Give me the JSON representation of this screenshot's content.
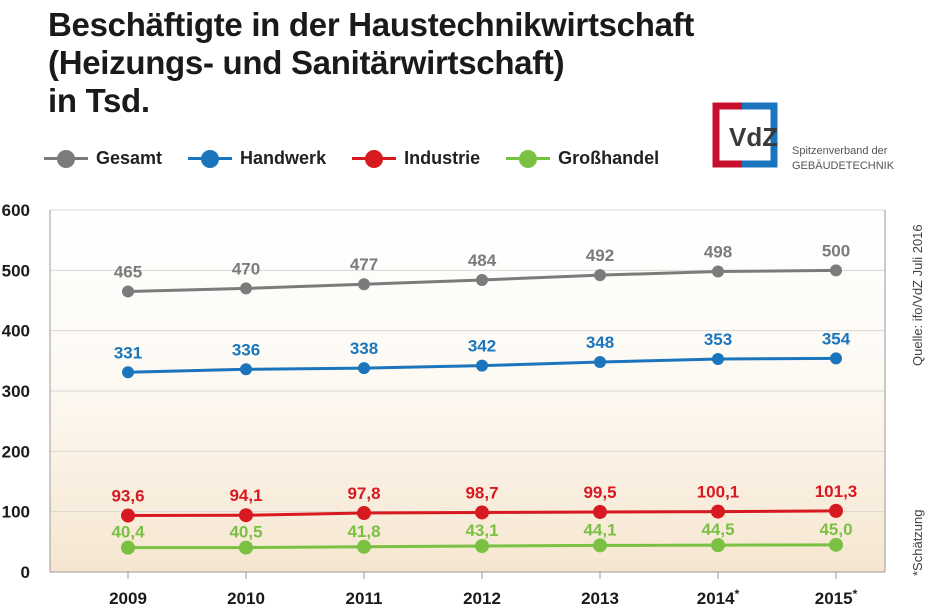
{
  "title_lines": [
    "Beschäftigte in der Haustechnikwirtschaft",
    "(Heizungs- und Sanitärwirtschaft)",
    "in Tsd."
  ],
  "legend": [
    {
      "label": "Gesamt",
      "color": "#7b7b7b"
    },
    {
      "label": "Handwerk",
      "color": "#1b75bc"
    },
    {
      "label": "Industrie",
      "color": "#d71920"
    },
    {
      "label": "Großhandel",
      "color": "#7ac143"
    }
  ],
  "logo": {
    "text": "VdZ",
    "org_line1": "Spitzenverband der",
    "org_line2": "GEBÄUDETECHNIK",
    "colors": {
      "red": "#c8102e",
      "blue": "#1b75bc"
    }
  },
  "source": "Quelle: ifo/VdZ Juli 2016",
  "footnote": "*Schätzung",
  "chart_data": {
    "type": "line",
    "categories": [
      "2009",
      "2010",
      "2011",
      "2012",
      "2013",
      "2014*",
      "2015*"
    ],
    "ylim": [
      0,
      600
    ],
    "yticks": [
      "0",
      "100",
      "200",
      "300",
      "400",
      "500",
      "600"
    ],
    "grid": true,
    "legend_position": "top",
    "series": [
      {
        "name": "Gesamt",
        "color": "#7b7b7b",
        "values": [
          465,
          470,
          477,
          484,
          492,
          498,
          500
        ],
        "labels": [
          "465",
          "470",
          "477",
          "484",
          "492",
          "498",
          "500"
        ]
      },
      {
        "name": "Handwerk",
        "color": "#1b75bc",
        "values": [
          331,
          336,
          338,
          342,
          348,
          353,
          354
        ],
        "labels": [
          "331",
          "336",
          "338",
          "342",
          "348",
          "353",
          "354"
        ]
      },
      {
        "name": "Industrie",
        "color": "#d71920",
        "values": [
          93.6,
          94.1,
          97.8,
          98.7,
          99.5,
          100.1,
          101.3
        ],
        "labels": [
          "93,6",
          "94,1",
          "97,8",
          "98,7",
          "99,5",
          "100,1",
          "101,3"
        ]
      },
      {
        "name": "Großhandel",
        "color": "#7ac143",
        "values": [
          40.4,
          40.5,
          41.8,
          43.1,
          44.1,
          44.5,
          45.0
        ],
        "labels": [
          "40,4",
          "40,5",
          "41,8",
          "43,1",
          "44,1",
          "44,5",
          "45,0"
        ]
      }
    ]
  }
}
